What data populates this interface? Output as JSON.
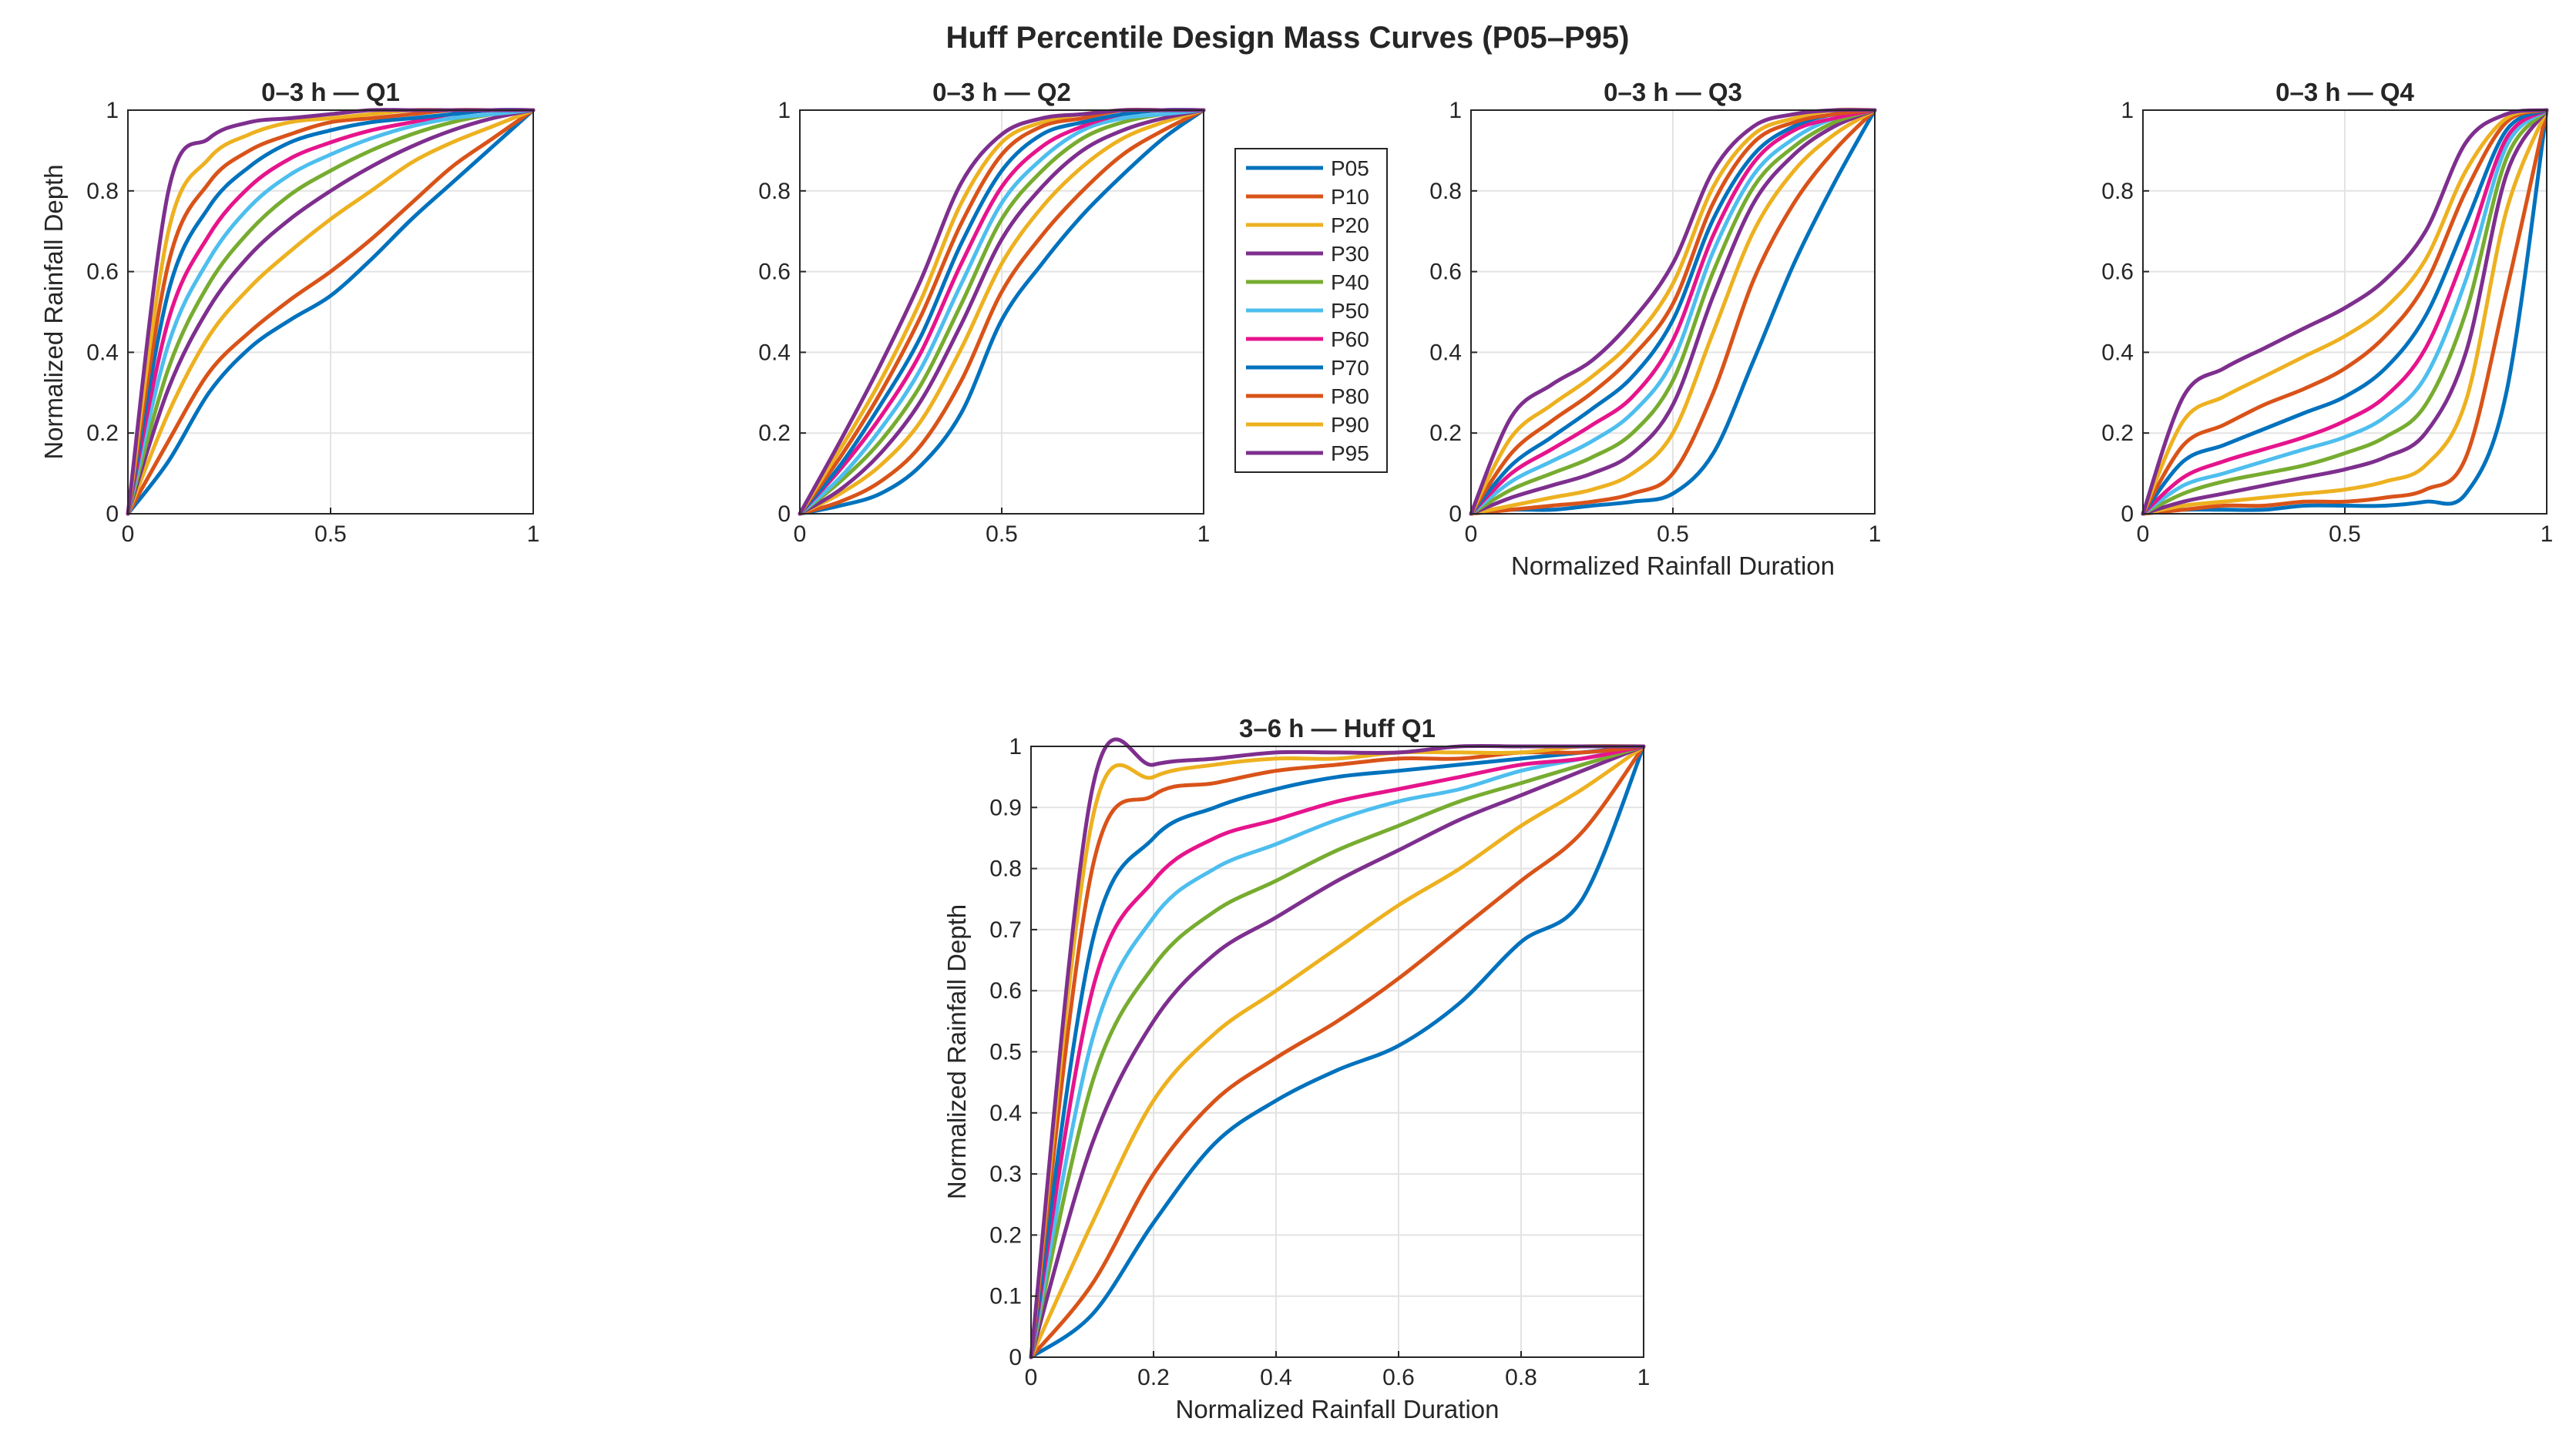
{
  "chart_data": {
    "type": "line",
    "title": "Huff Percentile Design Mass Curves (P05–P95)",
    "legend": {
      "placement": "between second and third subplot",
      "entries": [
        "P05",
        "P10",
        "P20",
        "P30",
        "P40",
        "P50",
        "P60",
        "P70",
        "P80",
        "P90",
        "P95"
      ]
    },
    "colors": [
      "#0072BD",
      "#D95319",
      "#EDB120",
      "#7E2F8E",
      "#77AC30",
      "#4DBEEE",
      "#E6148C",
      "#0072BD",
      "#D95319",
      "#EDB120",
      "#7E2F8E"
    ],
    "x_samples": [
      0,
      0.1,
      0.2,
      0.3,
      0.4,
      0.5,
      0.6,
      0.7,
      0.8,
      0.9,
      1
    ],
    "subplots": [
      {
        "title": "0–3 h — Q1",
        "xlabel": "",
        "ylabel": "Normalized Rainfall Depth",
        "xlim": [
          0,
          1
        ],
        "ylim": [
          0,
          1
        ],
        "xticks": [
          "0",
          "0.5",
          "1"
        ],
        "yticks": [
          "0",
          "0.2",
          "0.4",
          "0.6",
          "0.8",
          "1"
        ],
        "series": [
          {
            "name": "P05",
            "values": [
              0,
              0.13,
              0.3,
              0.41,
              0.48,
              0.54,
              0.63,
              0.73,
              0.82,
              0.91,
              1
            ]
          },
          {
            "name": "P10",
            "values": [
              0,
              0.18,
              0.35,
              0.45,
              0.53,
              0.6,
              0.68,
              0.77,
              0.86,
              0.93,
              1
            ]
          },
          {
            "name": "P20",
            "values": [
              0,
              0.25,
              0.44,
              0.56,
              0.65,
              0.73,
              0.8,
              0.87,
              0.92,
              0.96,
              1
            ]
          },
          {
            "name": "P30",
            "values": [
              0,
              0.31,
              0.51,
              0.64,
              0.73,
              0.8,
              0.86,
              0.91,
              0.95,
              0.98,
              1
            ]
          },
          {
            "name": "P40",
            "values": [
              0,
              0.36,
              0.57,
              0.7,
              0.79,
              0.85,
              0.9,
              0.94,
              0.97,
              0.99,
              1
            ]
          },
          {
            "name": "P50",
            "values": [
              0,
              0.42,
              0.63,
              0.76,
              0.84,
              0.89,
              0.93,
              0.96,
              0.98,
              0.99,
              1
            ]
          },
          {
            "name": "P60",
            "values": [
              0,
              0.48,
              0.69,
              0.81,
              0.88,
              0.92,
              0.95,
              0.97,
              0.99,
              1,
              1
            ]
          },
          {
            "name": "P70",
            "values": [
              0,
              0.55,
              0.76,
              0.86,
              0.92,
              0.95,
              0.97,
              0.98,
              0.99,
              1,
              1
            ]
          },
          {
            "name": "P80",
            "values": [
              0,
              0.62,
              0.82,
              0.9,
              0.94,
              0.97,
              0.98,
              0.99,
              1,
              1,
              1
            ]
          },
          {
            "name": "P90",
            "values": [
              0,
              0.7,
              0.88,
              0.94,
              0.97,
              0.98,
              0.99,
              1,
              1,
              1,
              1
            ]
          },
          {
            "name": "P95",
            "values": [
              0,
              0.8,
              0.93,
              0.97,
              0.98,
              0.99,
              1,
              1,
              1,
              1,
              1
            ]
          }
        ]
      },
      {
        "title": "0–3 h — Q2",
        "xlabel": "",
        "ylabel": "",
        "xlim": [
          0,
          1
        ],
        "ylim": [
          0,
          1
        ],
        "xticks": [
          "0",
          "0.5",
          "1"
        ],
        "yticks": [
          "0",
          "0.2",
          "0.4",
          "0.6",
          "0.8",
          "1"
        ],
        "series": [
          {
            "name": "P05",
            "values": [
              0,
              0.02,
              0.05,
              0.12,
              0.25,
              0.48,
              0.62,
              0.74,
              0.84,
              0.93,
              1
            ]
          },
          {
            "name": "P10",
            "values": [
              0,
              0.03,
              0.08,
              0.17,
              0.33,
              0.55,
              0.69,
              0.8,
              0.89,
              0.95,
              1
            ]
          },
          {
            "name": "P20",
            "values": [
              0,
              0.05,
              0.12,
              0.23,
              0.41,
              0.62,
              0.76,
              0.86,
              0.93,
              0.97,
              1
            ]
          },
          {
            "name": "P30",
            "values": [
              0,
              0.06,
              0.15,
              0.28,
              0.47,
              0.68,
              0.81,
              0.9,
              0.95,
              0.98,
              1
            ]
          },
          {
            "name": "P40",
            "values": [
              0,
              0.08,
              0.18,
              0.32,
              0.52,
              0.73,
              0.85,
              0.93,
              0.97,
              0.99,
              1
            ]
          },
          {
            "name": "P50",
            "values": [
              0,
              0.09,
              0.21,
              0.36,
              0.57,
              0.77,
              0.88,
              0.95,
              0.98,
              0.99,
              1
            ]
          },
          {
            "name": "P60",
            "values": [
              0,
              0.11,
              0.24,
              0.4,
              0.62,
              0.81,
              0.91,
              0.96,
              0.99,
              1,
              1
            ]
          },
          {
            "name": "P70",
            "values": [
              0,
              0.12,
              0.27,
              0.44,
              0.67,
              0.85,
              0.94,
              0.97,
              0.99,
              1,
              1
            ]
          },
          {
            "name": "P80",
            "values": [
              0,
              0.14,
              0.3,
              0.49,
              0.72,
              0.89,
              0.96,
              0.98,
              1,
              1,
              1
            ]
          },
          {
            "name": "P90",
            "values": [
              0,
              0.16,
              0.33,
              0.53,
              0.77,
              0.92,
              0.97,
              0.99,
              1,
              1,
              1
            ]
          },
          {
            "name": "P95",
            "values": [
              0,
              0.18,
              0.37,
              0.58,
              0.82,
              0.94,
              0.98,
              0.99,
              1,
              1,
              1
            ]
          }
        ]
      },
      {
        "title": "0–3 h — Q3",
        "xlabel": "Normalized Rainfall Duration",
        "ylabel": "",
        "xlim": [
          0,
          1
        ],
        "ylim": [
          0,
          1
        ],
        "xticks": [
          "0",
          "0.5",
          "1"
        ],
        "yticks": [
          "0",
          "0.2",
          "0.4",
          "0.6",
          "0.8",
          "1"
        ],
        "series": [
          {
            "name": "P05",
            "values": [
              0,
              0.01,
              0.01,
              0.02,
              0.03,
              0.05,
              0.15,
              0.38,
              0.62,
              0.82,
              1
            ]
          },
          {
            "name": "P10",
            "values": [
              0,
              0.01,
              0.02,
              0.03,
              0.05,
              0.1,
              0.3,
              0.58,
              0.77,
              0.9,
              1
            ]
          },
          {
            "name": "P20",
            "values": [
              0,
              0.02,
              0.04,
              0.06,
              0.1,
              0.2,
              0.45,
              0.7,
              0.85,
              0.94,
              1
            ]
          },
          {
            "name": "P30",
            "values": [
              0,
              0.04,
              0.07,
              0.1,
              0.15,
              0.27,
              0.54,
              0.77,
              0.89,
              0.96,
              1
            ]
          },
          {
            "name": "P40",
            "values": [
              0,
              0.06,
              0.1,
              0.14,
              0.2,
              0.33,
              0.6,
              0.81,
              0.91,
              0.97,
              1
            ]
          },
          {
            "name": "P50",
            "values": [
              0,
              0.08,
              0.13,
              0.18,
              0.25,
              0.38,
              0.65,
              0.84,
              0.93,
              0.98,
              1
            ]
          },
          {
            "name": "P60",
            "values": [
              0,
              0.1,
              0.16,
              0.22,
              0.29,
              0.43,
              0.69,
              0.87,
              0.95,
              0.98,
              1
            ]
          },
          {
            "name": "P70",
            "values": [
              0,
              0.12,
              0.19,
              0.26,
              0.34,
              0.48,
              0.73,
              0.89,
              0.96,
              0.99,
              1
            ]
          },
          {
            "name": "P80",
            "values": [
              0,
              0.15,
              0.23,
              0.3,
              0.39,
              0.52,
              0.77,
              0.92,
              0.97,
              0.99,
              1
            ]
          },
          {
            "name": "P90",
            "values": [
              0,
              0.19,
              0.27,
              0.34,
              0.43,
              0.57,
              0.81,
              0.94,
              0.98,
              1,
              1
            ]
          },
          {
            "name": "P95",
            "values": [
              0,
              0.24,
              0.32,
              0.38,
              0.48,
              0.62,
              0.85,
              0.96,
              0.99,
              1,
              1
            ]
          }
        ]
      },
      {
        "title": "0–3 h — Q4",
        "xlabel": "",
        "ylabel": "",
        "xlim": [
          0,
          1
        ],
        "ylim": [
          0,
          1
        ],
        "xticks": [
          "0",
          "0.5",
          "1"
        ],
        "yticks": [
          "0",
          "0.2",
          "0.4",
          "0.6",
          "0.8",
          "1"
        ],
        "series": [
          {
            "name": "P05",
            "values": [
              0,
              0.01,
              0.01,
              0.01,
              0.02,
              0.02,
              0.02,
              0.03,
              0.05,
              0.3,
              1
            ]
          },
          {
            "name": "P10",
            "values": [
              0,
              0.01,
              0.02,
              0.02,
              0.03,
              0.03,
              0.04,
              0.06,
              0.14,
              0.55,
              1
            ]
          },
          {
            "name": "P20",
            "values": [
              0,
              0.02,
              0.03,
              0.04,
              0.05,
              0.06,
              0.08,
              0.12,
              0.28,
              0.75,
              1
            ]
          },
          {
            "name": "P30",
            "values": [
              0,
              0.03,
              0.05,
              0.07,
              0.09,
              0.11,
              0.14,
              0.2,
              0.4,
              0.84,
              1
            ]
          },
          {
            "name": "P40",
            "values": [
              0,
              0.05,
              0.08,
              0.1,
              0.12,
              0.15,
              0.19,
              0.27,
              0.5,
              0.88,
              1
            ]
          },
          {
            "name": "P50",
            "values": [
              0,
              0.07,
              0.1,
              0.13,
              0.16,
              0.19,
              0.24,
              0.34,
              0.58,
              0.91,
              1
            ]
          },
          {
            "name": "P60",
            "values": [
              0,
              0.09,
              0.13,
              0.16,
              0.19,
              0.23,
              0.29,
              0.41,
              0.65,
              0.93,
              1
            ]
          },
          {
            "name": "P70",
            "values": [
              0,
              0.13,
              0.17,
              0.21,
              0.25,
              0.29,
              0.36,
              0.49,
              0.72,
              0.95,
              1
            ]
          },
          {
            "name": "P80",
            "values": [
              0,
              0.17,
              0.22,
              0.27,
              0.31,
              0.36,
              0.44,
              0.57,
              0.8,
              0.97,
              1
            ]
          },
          {
            "name": "P90",
            "values": [
              0,
              0.23,
              0.29,
              0.34,
              0.39,
              0.44,
              0.51,
              0.63,
              0.85,
              0.98,
              1
            ]
          },
          {
            "name": "P95",
            "values": [
              0,
              0.29,
              0.36,
              0.41,
              0.46,
              0.51,
              0.58,
              0.7,
              0.92,
              0.99,
              1
            ]
          }
        ]
      },
      {
        "title": "3–6 h — Huff Q1",
        "xlabel": "Normalized Rainfall Duration",
        "ylabel": "Normalized Rainfall Depth",
        "xlim": [
          0,
          1
        ],
        "ylim": [
          0,
          1
        ],
        "xticks": [
          "0",
          "0.2",
          "0.4",
          "0.6",
          "0.8",
          "1"
        ],
        "yticks": [
          "0",
          "0.1",
          "0.2",
          "0.3",
          "0.4",
          "0.5",
          "0.6",
          "0.7",
          "0.8",
          "0.9",
          "1"
        ],
        "series": [
          {
            "name": "P05",
            "values": [
              0,
              0.07,
              0.22,
              0.35,
              0.42,
              0.47,
              0.51,
              0.58,
              0.68,
              0.75,
              1
            ]
          },
          {
            "name": "P10",
            "values": [
              0,
              0.12,
              0.3,
              0.42,
              0.49,
              0.55,
              0.62,
              0.7,
              0.78,
              0.86,
              1
            ]
          },
          {
            "name": "P20",
            "values": [
              0,
              0.22,
              0.42,
              0.53,
              0.6,
              0.67,
              0.74,
              0.8,
              0.87,
              0.93,
              1
            ]
          },
          {
            "name": "P30",
            "values": [
              0,
              0.35,
              0.55,
              0.66,
              0.72,
              0.78,
              0.83,
              0.88,
              0.92,
              0.96,
              1
            ]
          },
          {
            "name": "P40",
            "values": [
              0,
              0.45,
              0.64,
              0.73,
              0.78,
              0.83,
              0.87,
              0.91,
              0.94,
              0.97,
              1
            ]
          },
          {
            "name": "P50",
            "values": [
              0,
              0.52,
              0.72,
              0.8,
              0.84,
              0.88,
              0.91,
              0.93,
              0.96,
              0.98,
              1
            ]
          },
          {
            "name": "P60",
            "values": [
              0,
              0.6,
              0.78,
              0.85,
              0.88,
              0.91,
              0.93,
              0.95,
              0.97,
              0.98,
              1
            ]
          },
          {
            "name": "P70",
            "values": [
              0,
              0.68,
              0.85,
              0.9,
              0.93,
              0.95,
              0.96,
              0.97,
              0.98,
              0.99,
              1
            ]
          },
          {
            "name": "P80",
            "values": [
              0,
              0.8,
              0.92,
              0.94,
              0.96,
              0.97,
              0.98,
              0.98,
              0.99,
              0.99,
              1
            ]
          },
          {
            "name": "P90",
            "values": [
              0,
              0.88,
              0.95,
              0.97,
              0.98,
              0.98,
              0.99,
              0.99,
              0.99,
              1,
              1
            ]
          },
          {
            "name": "P95",
            "values": [
              0,
              0.93,
              0.97,
              0.98,
              0.99,
              0.99,
              0.99,
              1,
              1,
              1,
              1
            ]
          }
        ]
      }
    ]
  }
}
